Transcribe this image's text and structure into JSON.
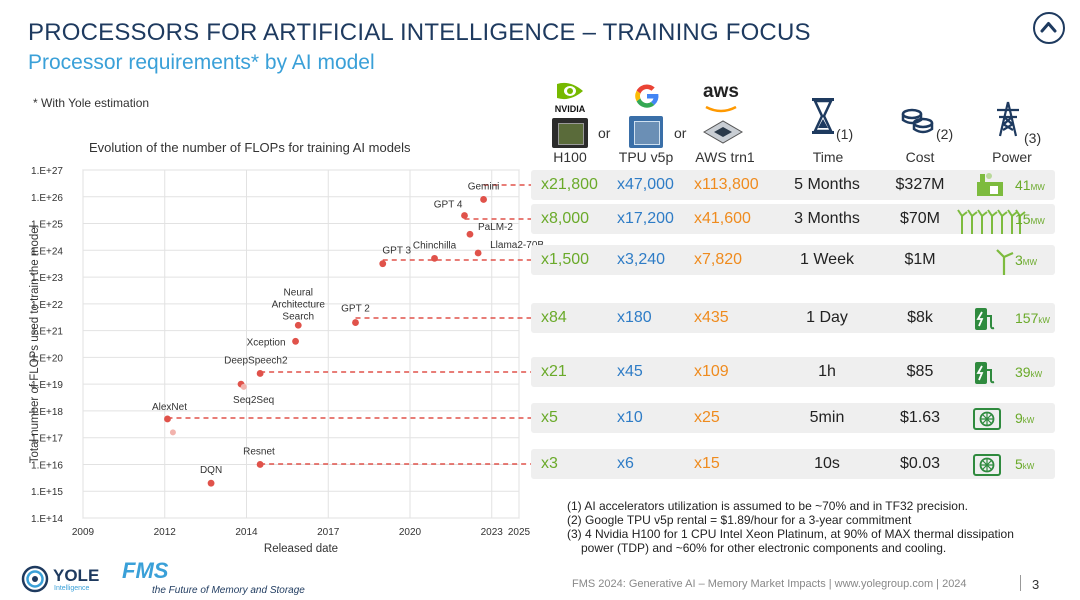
{
  "title": "PROCESSORS FOR ARTIFICIAL INTELLIGENCE – TRAINING FOCUS",
  "subtitle": "Processor requirements* by AI model",
  "note": "* With Yole estimation",
  "chart_data": {
    "type": "scatter",
    "title": "Evolution of the number of FLOPs for training AI models",
    "xlabel": "Released date",
    "ylabel": "Total number of FLOPs used to train the model",
    "x_ticks": [
      "2009",
      "2012",
      "2014",
      "2017",
      "2020",
      "2023",
      "2025"
    ],
    "y_ticks": [
      "1.E+14",
      "1.E+15",
      "1.E+16",
      "1.E+17",
      "1.E+18",
      "1.E+19",
      "1.E+20",
      "1.E+21",
      "1.E+22",
      "1.E+23",
      "1.E+24",
      "1.E+25",
      "1.E+26",
      "1.E+27"
    ],
    "xlim": [
      2009,
      2025
    ],
    "ylim_log10": [
      14,
      27
    ],
    "grid": true,
    "points": [
      {
        "label": "Gemini",
        "x": 2023.7,
        "log10_flops": 25.9
      },
      {
        "label": "GPT 4",
        "x": 2023.0,
        "log10_flops": 25.3
      },
      {
        "label": "PaLM-2",
        "x": 2023.2,
        "log10_flops": 24.6
      },
      {
        "label": "Llama2-70B",
        "x": 2023.5,
        "log10_flops": 23.9
      },
      {
        "label": "Chinchilla",
        "x": 2021.9,
        "log10_flops": 23.7
      },
      {
        "label": "GPT 3",
        "x": 2020.0,
        "log10_flops": 23.5
      },
      {
        "label": "Neural Architecture Search",
        "x": 2016.9,
        "log10_flops": 21.2
      },
      {
        "label": "GPT 2",
        "x": 2019.0,
        "log10_flops": 21.3
      },
      {
        "label": "Xception",
        "x": 2016.8,
        "log10_flops": 20.6
      },
      {
        "label": "DeepSpeech2",
        "x": 2015.5,
        "log10_flops": 19.4
      },
      {
        "label": "Seq2Seq",
        "x": 2014.8,
        "log10_flops": 19.0
      },
      {
        "label": "",
        "x": 2014.9,
        "log10_flops": 18.9
      },
      {
        "label": "AlexNet",
        "x": 2012.1,
        "log10_flops": 17.7
      },
      {
        "label": "",
        "x": 2012.3,
        "log10_flops": 17.2
      },
      {
        "label": "Resnet",
        "x": 2015.5,
        "log10_flops": 16.0
      },
      {
        "label": "DQN",
        "x": 2013.7,
        "log10_flops": 15.3
      }
    ]
  },
  "table": {
    "vendors": {
      "nvidia": "NVIDIA",
      "google": "G",
      "aws": "aws"
    },
    "or1": "or",
    "or2": "or",
    "headers": {
      "h100": "H100",
      "tpu": "TPU v5p",
      "trn": "AWS trn1",
      "time_num": "(1)",
      "time": "Time",
      "cost_num": "(2)",
      "cost": "Cost",
      "power_num": "(3)",
      "power": "Power"
    },
    "rows": [
      {
        "h100": "x21,800",
        "tpu": "x47,000",
        "trn": "x113,800",
        "time": "5 Months",
        "cost": "$327M",
        "power": "41",
        "unit": "MW",
        "icon": "power-plant-icon"
      },
      {
        "h100": "x8,000",
        "tpu": "x17,200",
        "trn": "x41,600",
        "time": "3 Months",
        "cost": "$70M",
        "power": "15",
        "unit": "MW",
        "icon": "wind-farm-icon"
      },
      {
        "h100": "x1,500",
        "tpu": "x3,240",
        "trn": "x7,820",
        "time": "1 Week",
        "cost": "$1M",
        "power": "3",
        "unit": "MW",
        "icon": "wind-turbine-icon"
      },
      {
        "h100": "x84",
        "tpu": "x180",
        "trn": "x435",
        "time": "1 Day",
        "cost": "$8k",
        "power": "157",
        "unit": "kW",
        "icon": "ev-charger-icon"
      },
      {
        "h100": "x21",
        "tpu": "x45",
        "trn": "x109",
        "time": "1h",
        "cost": "$85",
        "power": "39",
        "unit": "kW",
        "icon": "ev-charger-icon"
      },
      {
        "h100": "x5",
        "tpu": "x10",
        "trn": "x25",
        "time": "5min",
        "cost": "$1.63",
        "power": "9",
        "unit": "kW",
        "icon": "air-conditioner-icon"
      },
      {
        "h100": "x3",
        "tpu": "x6",
        "trn": "x15",
        "time": "10s",
        "cost": "$0.03",
        "power": "5",
        "unit": "kW",
        "icon": "air-conditioner-icon"
      }
    ]
  },
  "footnotes": [
    "(1) AI accelerators utilization is assumed to be ~70% and in TF32 precision.",
    "(2) Google TPU v5p rental = $1.89/hour for a 3-year commitment",
    "(3) 4 Nvidia H100 for 1 CPU Intel Xeon Platinum, at 90% of MAX thermal dissipation",
    "power (TDP) and ~60% for other electronic components and cooling."
  ],
  "footer": {
    "text": "FMS 2024: Generative AI – Memory Market Impacts | www.yolegroup.com | 2024",
    "page": "3",
    "yole": "YOLE",
    "yole_sub": "Intelligence",
    "fms": "FMS",
    "fms_tag": "the Future of Memory and Storage"
  },
  "colors": {
    "navy": "#1e3a5f",
    "accent": "#3aa0d8",
    "green": "#6aaa2a",
    "blue": "#2e7cc6",
    "orange": "#ef8b1e",
    "point": "#e0524a"
  }
}
